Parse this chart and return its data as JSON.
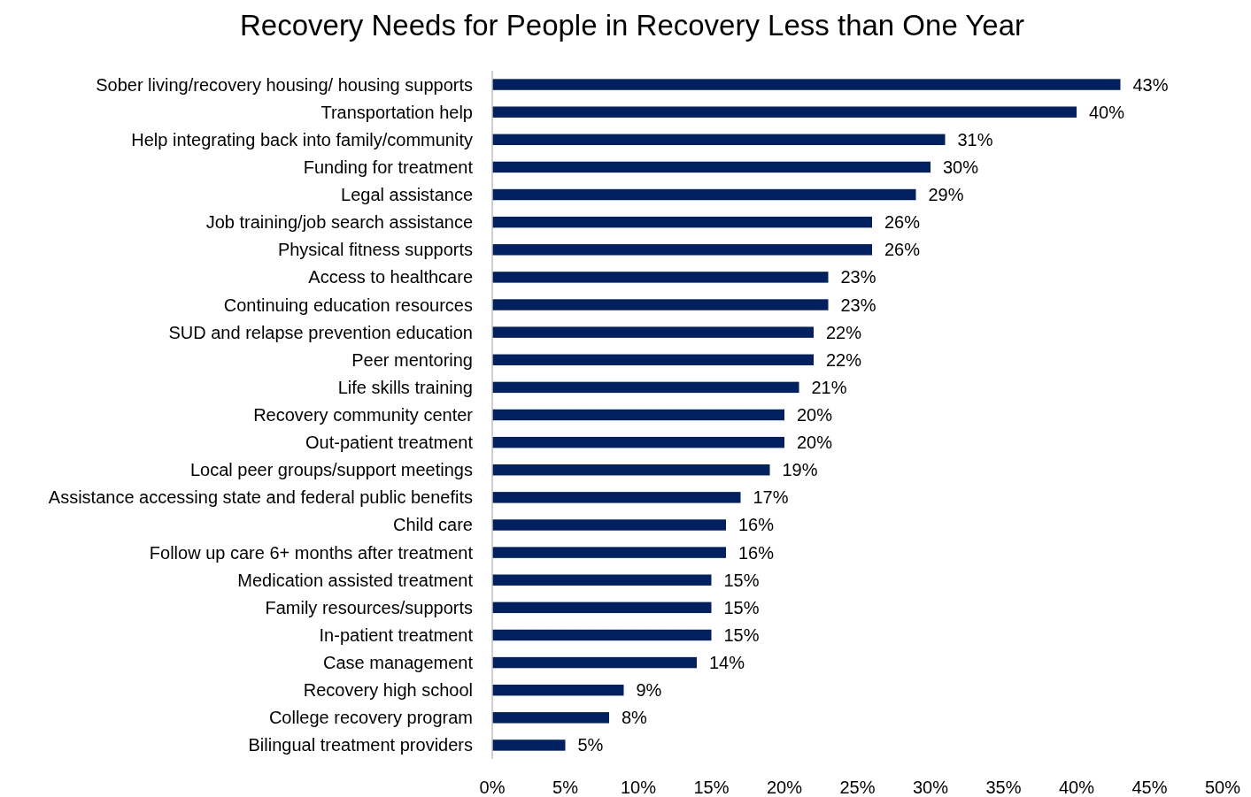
{
  "chart_data": {
    "type": "bar",
    "orientation": "horizontal",
    "title": "Recovery Needs for People in Recovery Less than One Year",
    "categories": [
      "Sober living/recovery housing/ housing supports",
      "Transportation help",
      "Help integrating back into family/community",
      "Funding for treatment",
      "Legal assistance",
      "Job training/job search assistance",
      "Physical fitness supports",
      "Access to healthcare",
      "Continuing education resources",
      "SUD and relapse prevention education",
      "Peer mentoring",
      "Life skills training",
      "Recovery community center",
      "Out-patient treatment",
      "Local peer groups/support meetings",
      "Assistance accessing state and federal public benefits",
      "Child care",
      "Follow up care 6+ months after treatment",
      "Medication assisted treatment",
      "Family resources/supports",
      "In-patient treatment",
      "Case management",
      "Recovery high school",
      "College recovery program",
      "Bilingual treatment providers"
    ],
    "values": [
      43,
      40,
      31,
      30,
      29,
      26,
      26,
      23,
      23,
      22,
      22,
      21,
      20,
      20,
      19,
      17,
      16,
      16,
      15,
      15,
      15,
      14,
      9,
      8,
      5
    ],
    "value_labels": [
      "43%",
      "40%",
      "31%",
      "30%",
      "29%",
      "26%",
      "26%",
      "23%",
      "23%",
      "22%",
      "22%",
      "21%",
      "20%",
      "20%",
      "19%",
      "17%",
      "16%",
      "16%",
      "15%",
      "15%",
      "15%",
      "14%",
      "9%",
      "8%",
      "5%"
    ],
    "color": "#002060",
    "xlim": [
      0,
      50
    ],
    "xticks": [
      {
        "value": 0,
        "label": "0%"
      },
      {
        "value": 5,
        "label": "5%"
      },
      {
        "value": 10,
        "label": "10%"
      },
      {
        "value": 15,
        "label": "15%"
      },
      {
        "value": 20,
        "label": "20%"
      },
      {
        "value": 25,
        "label": "25%"
      },
      {
        "value": 30,
        "label": "30%"
      },
      {
        "value": 35,
        "label": "35%"
      },
      {
        "value": 40,
        "label": "40%"
      },
      {
        "value": 45,
        "label": "45%"
      },
      {
        "value": 50,
        "label": "50%"
      }
    ],
    "grid": false
  }
}
